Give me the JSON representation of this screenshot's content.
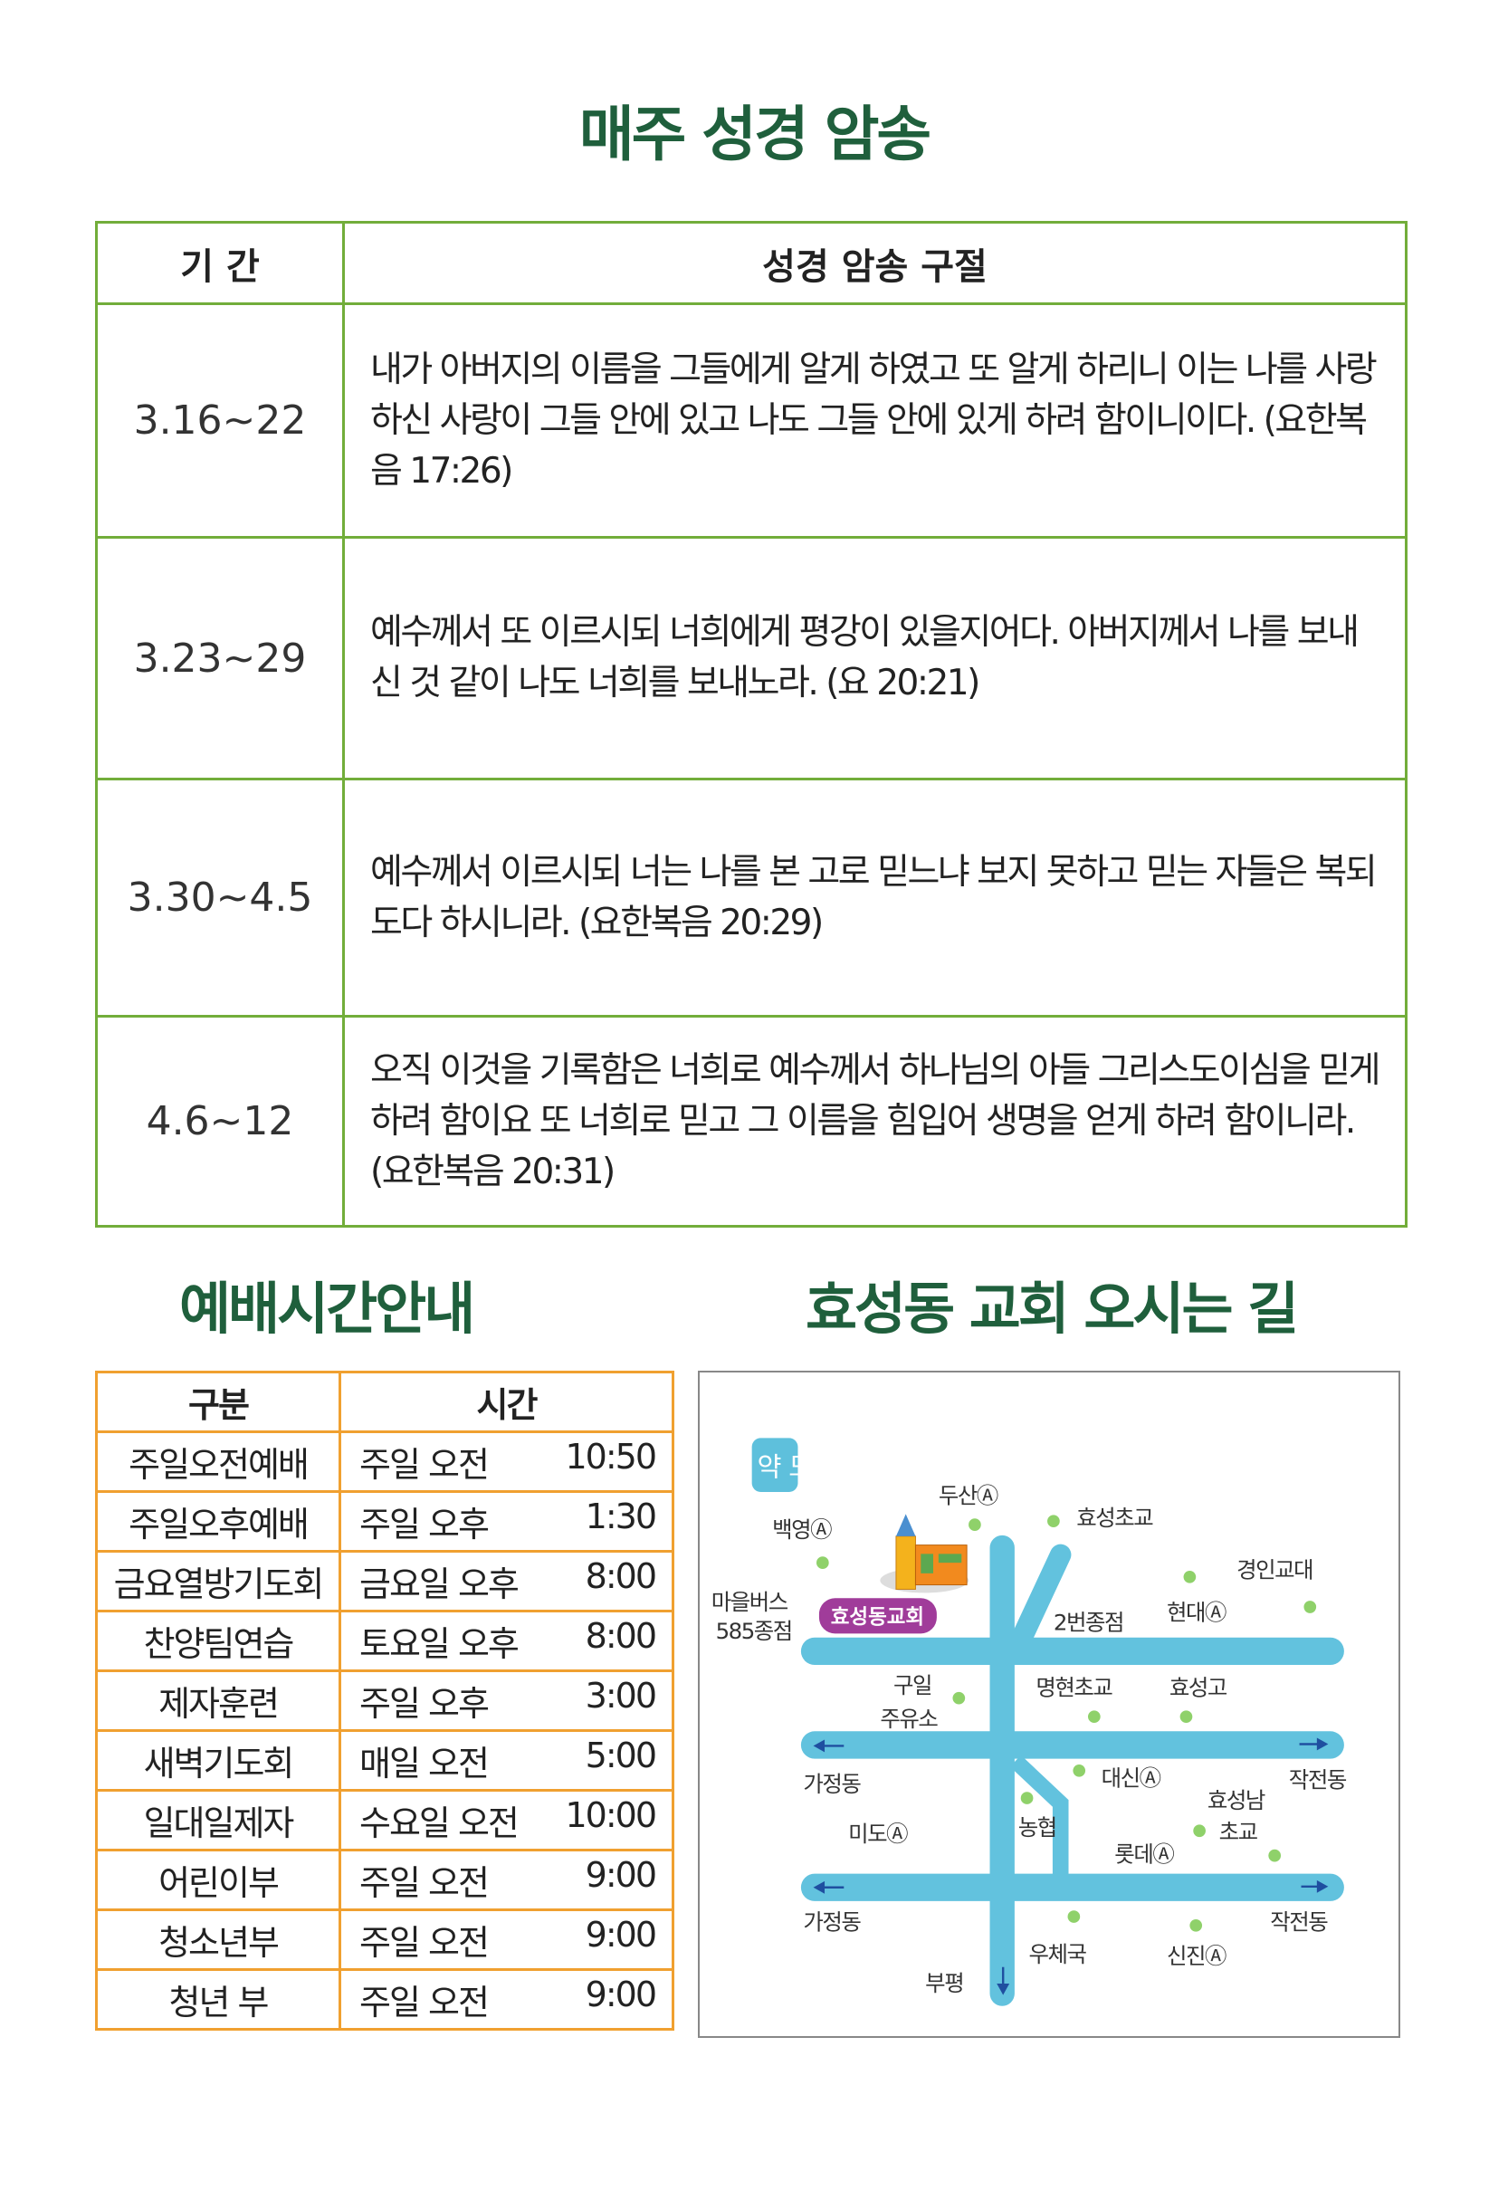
{
  "main_title": "매주 성경 암송",
  "verse_table": {
    "headers": [
      "기 간",
      "성경 암송 구절"
    ],
    "rows": [
      {
        "period": "3.16~22",
        "verse": "내가 아버지의 이름을 그들에게 알게 하였고 또 알게 하리니 이는 나를 사랑하신 사랑이 그들 안에 있고 나도 그들 안에 있게 하려 함이니이다. (요한복음 17:26)"
      },
      {
        "period": "3.23~29",
        "verse": "예수께서 또 이르시되 너희에게 평강이 있을지어다. 아버지께서 나를 보내신 것 같이 나도 너희를 보내노라. (요 20:21)"
      },
      {
        "period": "3.30~4.5",
        "verse": "예수께서 이르시되 너는 나를 본 고로 믿느냐 보지 못하고 믿는 자들은 복되도다 하시니라. (요한복음 20:29)"
      },
      {
        "period": "4.6~12",
        "verse": "오직 이것을 기록함은 너희로 예수께서 하나님의 아들 그리스도이심을 믿게 하려 함이요 또 너희로 믿고 그 이름을 힘입어 생명을 얻게 하려 함이니라. (요한복음 20:31)"
      }
    ]
  },
  "worship_title": "예배시간안내",
  "schedule": {
    "headers": [
      "구분",
      "시간"
    ],
    "rows": [
      {
        "name": "주일오전예배",
        "day": "주일 오전",
        "time": "10:50"
      },
      {
        "name": "주일오후예배",
        "day": "주일 오후",
        "time": "1:30"
      },
      {
        "name": "금요열방기도회",
        "day": "금요일 오후",
        "time": "8:00"
      },
      {
        "name": "찬양팀연습",
        "day": "토요일 오후",
        "time": "8:00"
      },
      {
        "name": "제자훈련",
        "day": "주일 오후",
        "time": "3:00"
      },
      {
        "name": "새벽기도회",
        "day": "매일 오전",
        "time": "5:00"
      },
      {
        "name": "일대일제자",
        "day": "수요일 오전",
        "time": "10:00"
      },
      {
        "name": "어린이부",
        "day": "주일 오전",
        "time": "9:00"
      },
      {
        "name": "청소년부",
        "day": "주일 오전",
        "time": "9:00"
      },
      {
        "name": "청년 부",
        "day": "주일 오전",
        "time": "9:00"
      }
    ]
  },
  "directions_title": "효성동 교회 오시는 길",
  "map": {
    "logo": "약도",
    "church_label": "효성동교회",
    "labels": [
      "두산Ⓐ",
      "효성초교",
      "백영Ⓐ",
      "경인교대",
      "마을버스",
      "585종점",
      "2번종점",
      "현대Ⓐ",
      "구일",
      "주유소",
      "명현초교",
      "효성고",
      "가정동",
      "대신Ⓐ",
      "작전동",
      "효성남",
      "초교",
      "미도Ⓐ",
      "농협",
      "롯데Ⓐ",
      "가정동",
      "작전동",
      "우체국",
      "신진Ⓐ",
      "부평"
    ],
    "colors": {
      "road": "#62c2de",
      "dot": "#8fd16a",
      "church_pill": "#a03c9a",
      "arrow": "#1f4fa0"
    }
  },
  "colors": {
    "title": "#1f5f3c",
    "verse_border": "#72ad3a",
    "schedule_border": "#f0a030"
  }
}
